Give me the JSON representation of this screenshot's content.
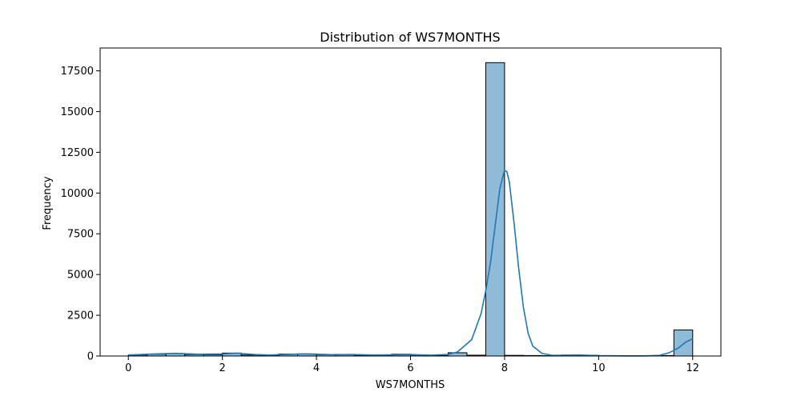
{
  "chart_data": {
    "type": "bar",
    "title": "Distribution of WS7MONTHS",
    "xlabel": "WS7MONTHS",
    "ylabel": "Frequency",
    "xlim": [
      -0.6,
      12.6
    ],
    "ylim": [
      0,
      18900
    ],
    "xticks": [
      0,
      2,
      4,
      6,
      8,
      10,
      12
    ],
    "yticks": [
      0,
      2500,
      5000,
      7500,
      10000,
      12500,
      15000,
      17500
    ],
    "bin_width": 0.4,
    "bins": [
      {
        "x0": 0.0,
        "value": 60
      },
      {
        "x0": 0.4,
        "value": 110
      },
      {
        "x0": 0.8,
        "value": 150
      },
      {
        "x0": 1.2,
        "value": 90
      },
      {
        "x0": 1.6,
        "value": 80
      },
      {
        "x0": 2.0,
        "value": 180
      },
      {
        "x0": 2.4,
        "value": 60
      },
      {
        "x0": 2.8,
        "value": 40
      },
      {
        "x0": 3.2,
        "value": 120
      },
      {
        "x0": 3.6,
        "value": 130
      },
      {
        "x0": 4.0,
        "value": 80
      },
      {
        "x0": 4.4,
        "value": 100
      },
      {
        "x0": 4.8,
        "value": 50
      },
      {
        "x0": 5.2,
        "value": 40
      },
      {
        "x0": 5.6,
        "value": 110
      },
      {
        "x0": 6.0,
        "value": 60
      },
      {
        "x0": 6.4,
        "value": 30
      },
      {
        "x0": 6.8,
        "value": 200
      },
      {
        "x0": 7.2,
        "value": 50
      },
      {
        "x0": 7.6,
        "value": 18000
      },
      {
        "x0": 8.0,
        "value": 40
      },
      {
        "x0": 8.4,
        "value": 30
      },
      {
        "x0": 8.8,
        "value": 20
      },
      {
        "x0": 9.2,
        "value": 60
      },
      {
        "x0": 9.6,
        "value": 40
      },
      {
        "x0": 10.0,
        "value": 10
      },
      {
        "x0": 10.4,
        "value": 10
      },
      {
        "x0": 10.8,
        "value": 10
      },
      {
        "x0": 11.2,
        "value": 30
      },
      {
        "x0": 11.6,
        "value": 1600
      }
    ],
    "kde": [
      [
        0.0,
        60
      ],
      [
        0.5,
        120
      ],
      [
        1.0,
        160
      ],
      [
        1.5,
        110
      ],
      [
        2.0,
        130
      ],
      [
        2.3,
        170
      ],
      [
        2.7,
        90
      ],
      [
        3.0,
        60
      ],
      [
        3.3,
        90
      ],
      [
        3.7,
        130
      ],
      [
        4.0,
        110
      ],
      [
        4.4,
        80
      ],
      [
        4.8,
        90
      ],
      [
        5.2,
        60
      ],
      [
        5.6,
        70
      ],
      [
        6.0,
        90
      ],
      [
        6.4,
        50
      ],
      [
        6.8,
        100
      ],
      [
        7.0,
        250
      ],
      [
        7.3,
        1000
      ],
      [
        7.5,
        2600
      ],
      [
        7.6,
        4000
      ],
      [
        7.7,
        5700
      ],
      [
        7.8,
        8000
      ],
      [
        7.9,
        10300
      ],
      [
        8.0,
        11400
      ],
      [
        8.05,
        11300
      ],
      [
        8.1,
        10700
      ],
      [
        8.2,
        8200
      ],
      [
        8.3,
        5400
      ],
      [
        8.4,
        3000
      ],
      [
        8.5,
        1400
      ],
      [
        8.6,
        600
      ],
      [
        8.8,
        150
      ],
      [
        9.0,
        50
      ],
      [
        9.3,
        40
      ],
      [
        9.6,
        60
      ],
      [
        10.0,
        20
      ],
      [
        10.5,
        10
      ],
      [
        11.0,
        10
      ],
      [
        11.3,
        40
      ],
      [
        11.5,
        200
      ],
      [
        11.7,
        500
      ],
      [
        11.85,
        850
      ],
      [
        12.0,
        1050
      ]
    ],
    "colors": {
      "bar_fill": "#1f77b4",
      "bar_opacity": 0.5,
      "bar_edge": "#000000",
      "kde_line": "#1f77b4"
    }
  }
}
